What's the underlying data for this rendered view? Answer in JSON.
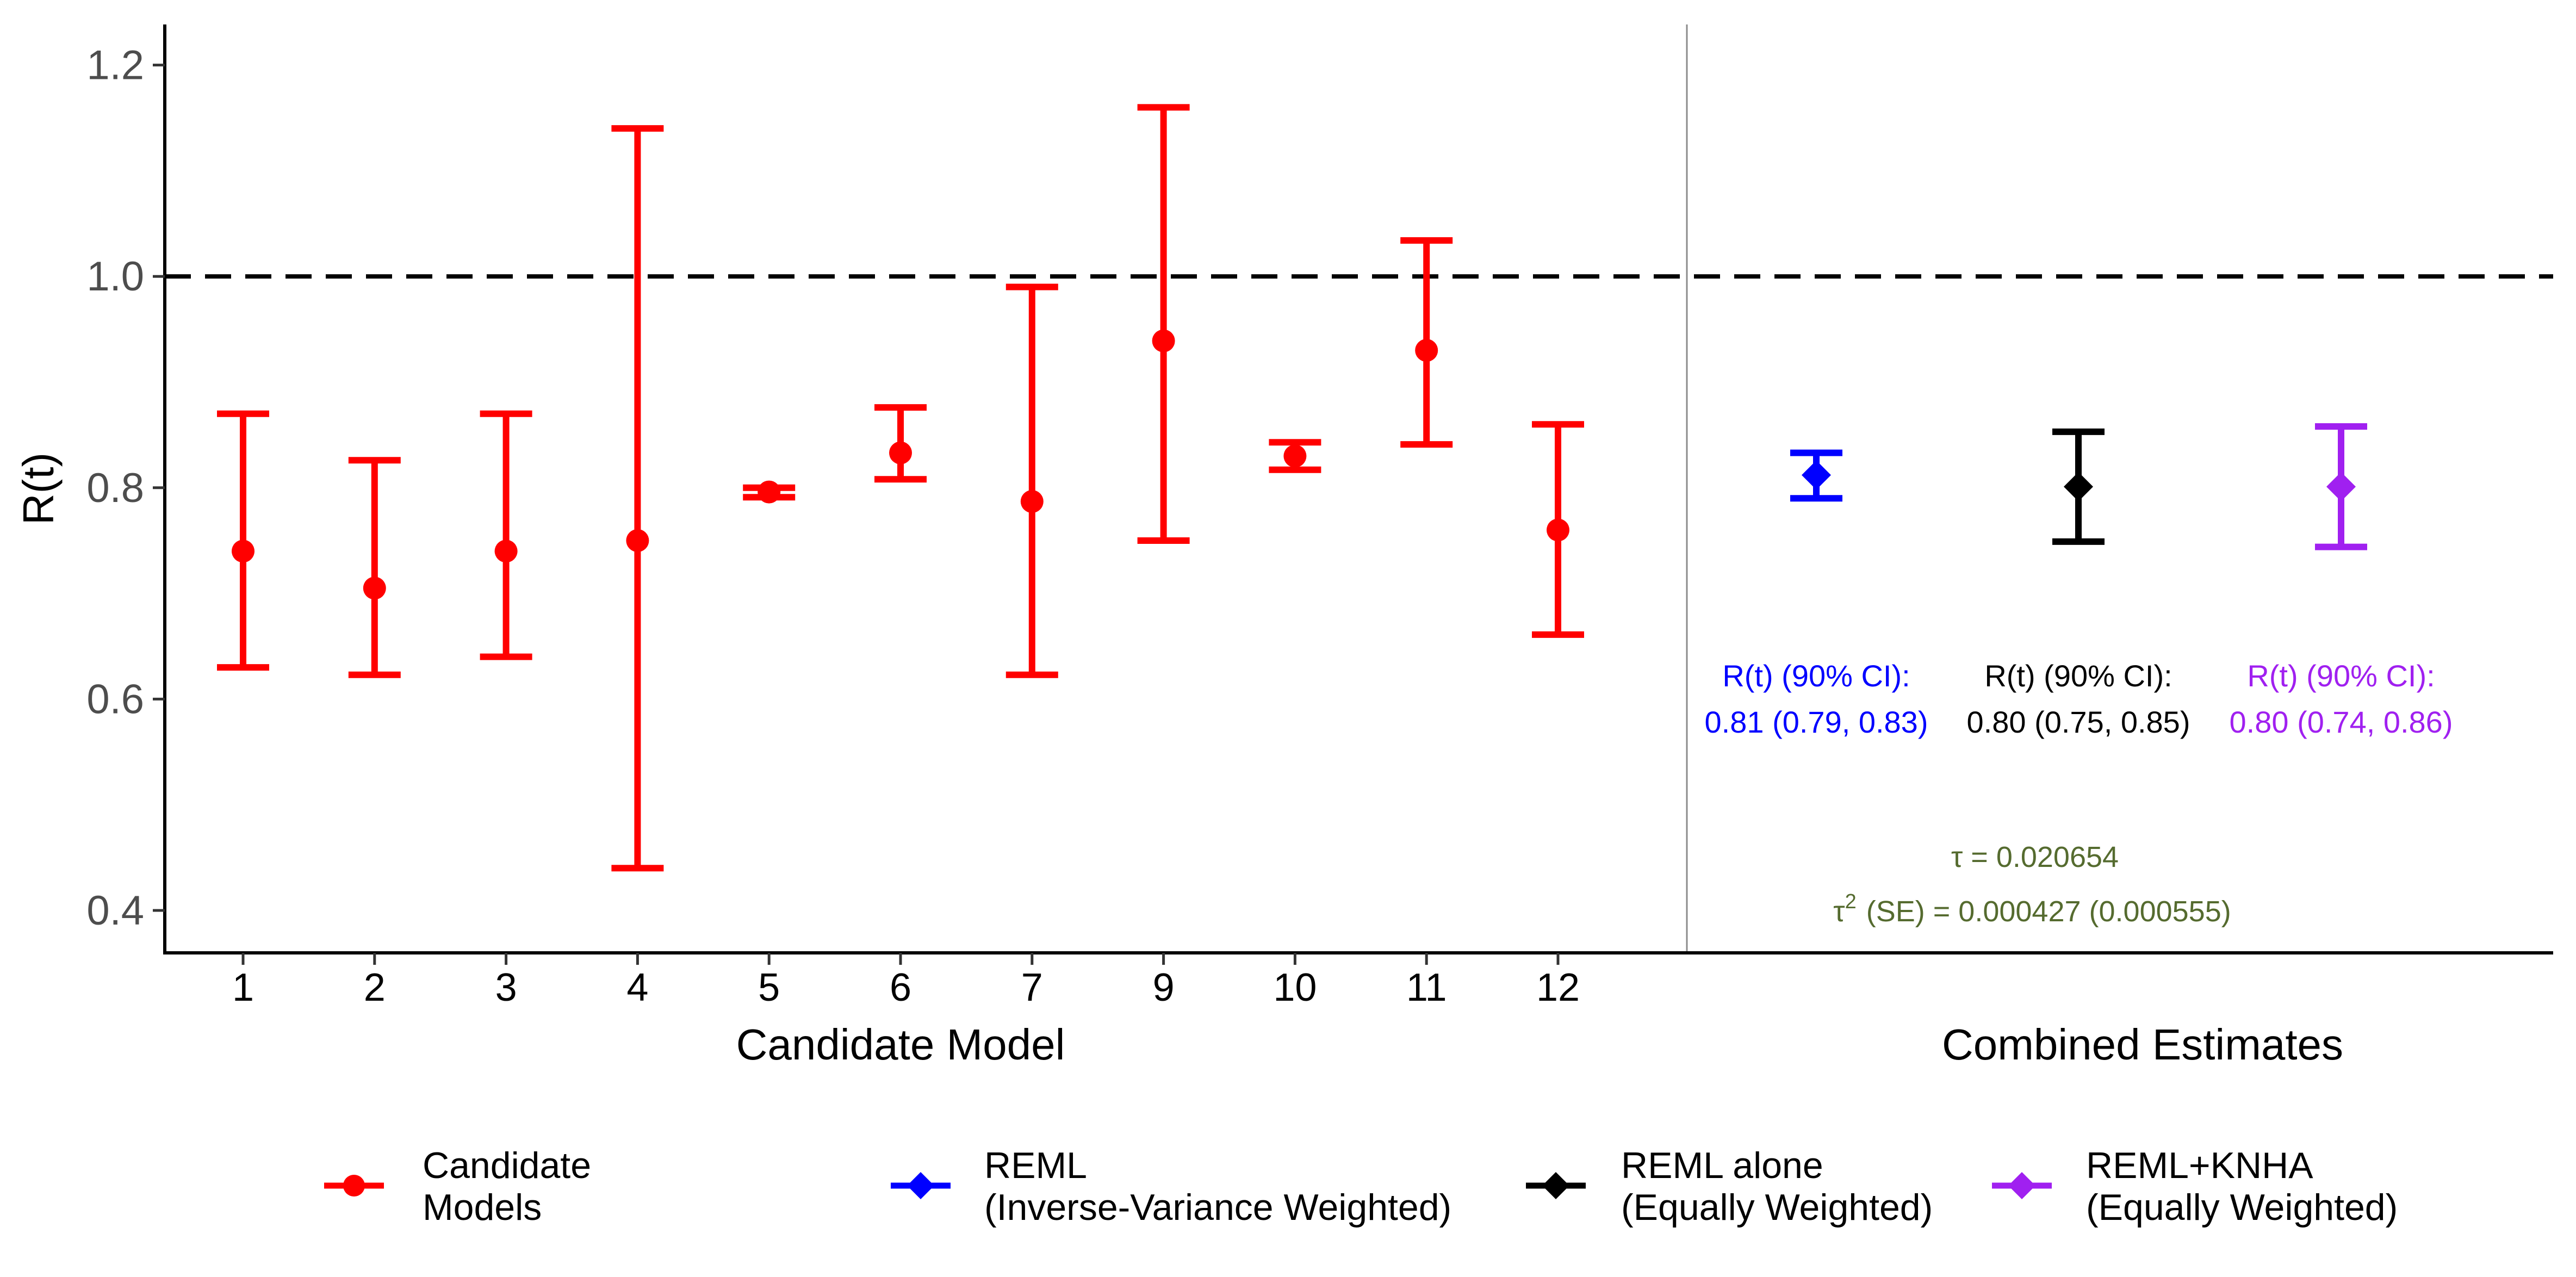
{
  "chart_data": {
    "type": "scatter",
    "subtype": "point-range with error bars",
    "ylabel": "R(t)",
    "ylim": [
      0.365,
      1.235
    ],
    "yticks": [
      0.4,
      0.6,
      0.8,
      1.0,
      1.2
    ],
    "ytick_labels": [
      "0.4",
      "0.6",
      "0.8",
      "1.0",
      "1.2"
    ],
    "reference_line": {
      "y": 1.0,
      "style": "dashed",
      "color": "#000000"
    },
    "grid": false,
    "panels": {
      "candidate": {
        "xlabel": "Candidate Model",
        "points": [
          {
            "label": "1",
            "y": 0.74,
            "lo": 0.63,
            "hi": 0.87
          },
          {
            "label": "2",
            "y": 0.705,
            "lo": 0.623,
            "hi": 0.826
          },
          {
            "label": "3",
            "y": 0.74,
            "lo": 0.64,
            "hi": 0.87
          },
          {
            "label": "4",
            "y": 0.75,
            "lo": 0.44,
            "hi": 1.14
          },
          {
            "label": "5",
            "y": 0.796,
            "lo": 0.791,
            "hi": 0.8
          },
          {
            "label": "6",
            "y": 0.833,
            "lo": 0.808,
            "hi": 0.876
          },
          {
            "label": "7",
            "y": 0.787,
            "lo": 0.623,
            "hi": 0.99
          },
          {
            "label": "9",
            "y": 0.939,
            "lo": 0.75,
            "hi": 1.16
          },
          {
            "label": "10",
            "y": 0.83,
            "lo": 0.817,
            "hi": 0.843
          },
          {
            "label": "11",
            "y": 0.93,
            "lo": 0.841,
            "hi": 1.034
          },
          {
            "label": "12",
            "y": 0.76,
            "lo": 0.661,
            "hi": 0.86
          }
        ]
      },
      "combined": {
        "xlabel": "Combined Estimates",
        "points": [
          {
            "series": "reml_ivw",
            "y": 0.812,
            "lo": 0.79,
            "hi": 0.833
          },
          {
            "series": "reml",
            "y": 0.801,
            "lo": 0.749,
            "hi": 0.853
          },
          {
            "series": "reml_knha",
            "y": 0.801,
            "lo": 0.744,
            "hi": 0.858
          }
        ],
        "annotations": [
          {
            "series": "reml_ivw",
            "line1": "R(t) (90% CI):",
            "line2": "0.81 (0.79, 0.83)"
          },
          {
            "series": "reml",
            "line1": "R(t) (90% CI):",
            "line2": "0.80 (0.75, 0.85)"
          },
          {
            "series": "reml_knha",
            "line1": "R(t) (90% CI):",
            "line2": "0.80 (0.74, 0.86)"
          }
        ],
        "heterogeneity": {
          "tau_symbol": "τ",
          "tau_text": " = 0.020654",
          "tau2_symbol": "τ",
          "tau2_superscript": "2",
          "tau2_text": "(SE) = 0.000427 (0.000555)",
          "color": "#556b2f"
        }
      }
    },
    "series": [
      {
        "key": "candidate",
        "name_lines": [
          "Candidate",
          "Models"
        ],
        "color": "#ff0000",
        "marker": "circle"
      },
      {
        "key": "reml_ivw",
        "name_lines": [
          "REML",
          "(Inverse-Variance Weighted)"
        ],
        "color": "#0000ff",
        "marker": "diamond"
      },
      {
        "key": "reml",
        "name_lines": [
          "REML alone",
          "(Equally Weighted)"
        ],
        "color": "#000000",
        "marker": "diamond"
      },
      {
        "key": "reml_knha",
        "name_lines": [
          "REML+KNHA",
          "(Equally Weighted)"
        ],
        "color": "#a020f0",
        "marker": "diamond"
      }
    ],
    "legend_position": "bottom"
  }
}
